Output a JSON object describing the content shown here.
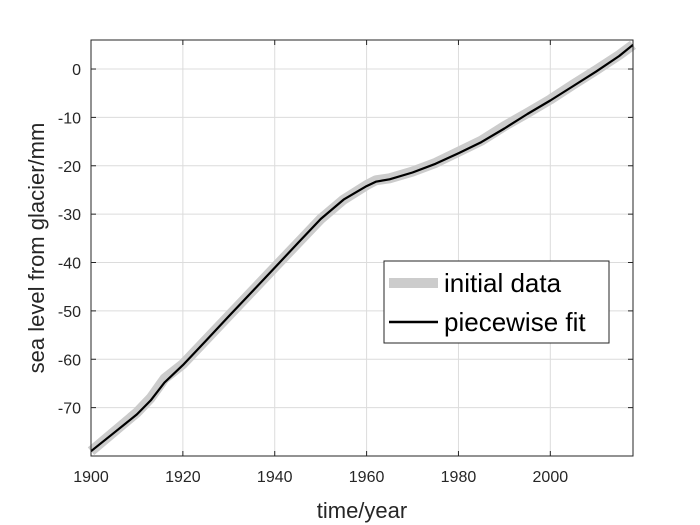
{
  "chart_data": {
    "type": "line",
    "title": "",
    "xlabel": "time/year",
    "ylabel": "sea level from glacier/mm",
    "xlim": [
      1900,
      2018
    ],
    "ylim": [
      -80,
      6
    ],
    "grid": true,
    "legend_position": "center-right",
    "xticks": [
      1900,
      1920,
      1940,
      1960,
      1980,
      2000
    ],
    "yticks": [
      0,
      -10,
      -20,
      -30,
      -40,
      -50,
      -60,
      -70
    ],
    "series": [
      {
        "name": "initial data",
        "color": "#cccccc",
        "style": "thick",
        "x": [
          1900,
          1905,
          1910,
          1913,
          1916,
          1920,
          1925,
          1930,
          1935,
          1940,
          1945,
          1950,
          1955,
          1960,
          1962,
          1965,
          1970,
          1975,
          1980,
          1985,
          1990,
          1995,
          2000,
          2005,
          2010,
          2015,
          2018
        ],
        "y": [
          -79,
          -75,
          -71,
          -68,
          -64,
          -61,
          -56,
          -51,
          -46,
          -41,
          -36,
          -31,
          -27,
          -24,
          -23,
          -22.6,
          -21.2,
          -19.4,
          -17.1,
          -14.8,
          -11.8,
          -9.1,
          -6.3,
          -3.2,
          -0.2,
          2.9,
          5
        ]
      },
      {
        "name": "piecewise fit",
        "color": "#000000",
        "style": "thin",
        "x": [
          1900,
          1905,
          1910,
          1913,
          1916,
          1920,
          1925,
          1930,
          1935,
          1940,
          1945,
          1950,
          1955,
          1960,
          1962,
          1965,
          1970,
          1975,
          1980,
          1985,
          1990,
          1995,
          2000,
          2005,
          2010,
          2015,
          2018
        ],
        "y": [
          -79,
          -75.2,
          -71.4,
          -68.5,
          -64.8,
          -61.2,
          -56.2,
          -51.1,
          -46.1,
          -41.1,
          -36,
          -31,
          -27,
          -24.2,
          -23.3,
          -22.8,
          -21.4,
          -19.6,
          -17.4,
          -15.1,
          -12.3,
          -9.3,
          -6.5,
          -3.5,
          -0.5,
          2.7,
          5
        ]
      }
    ]
  }
}
